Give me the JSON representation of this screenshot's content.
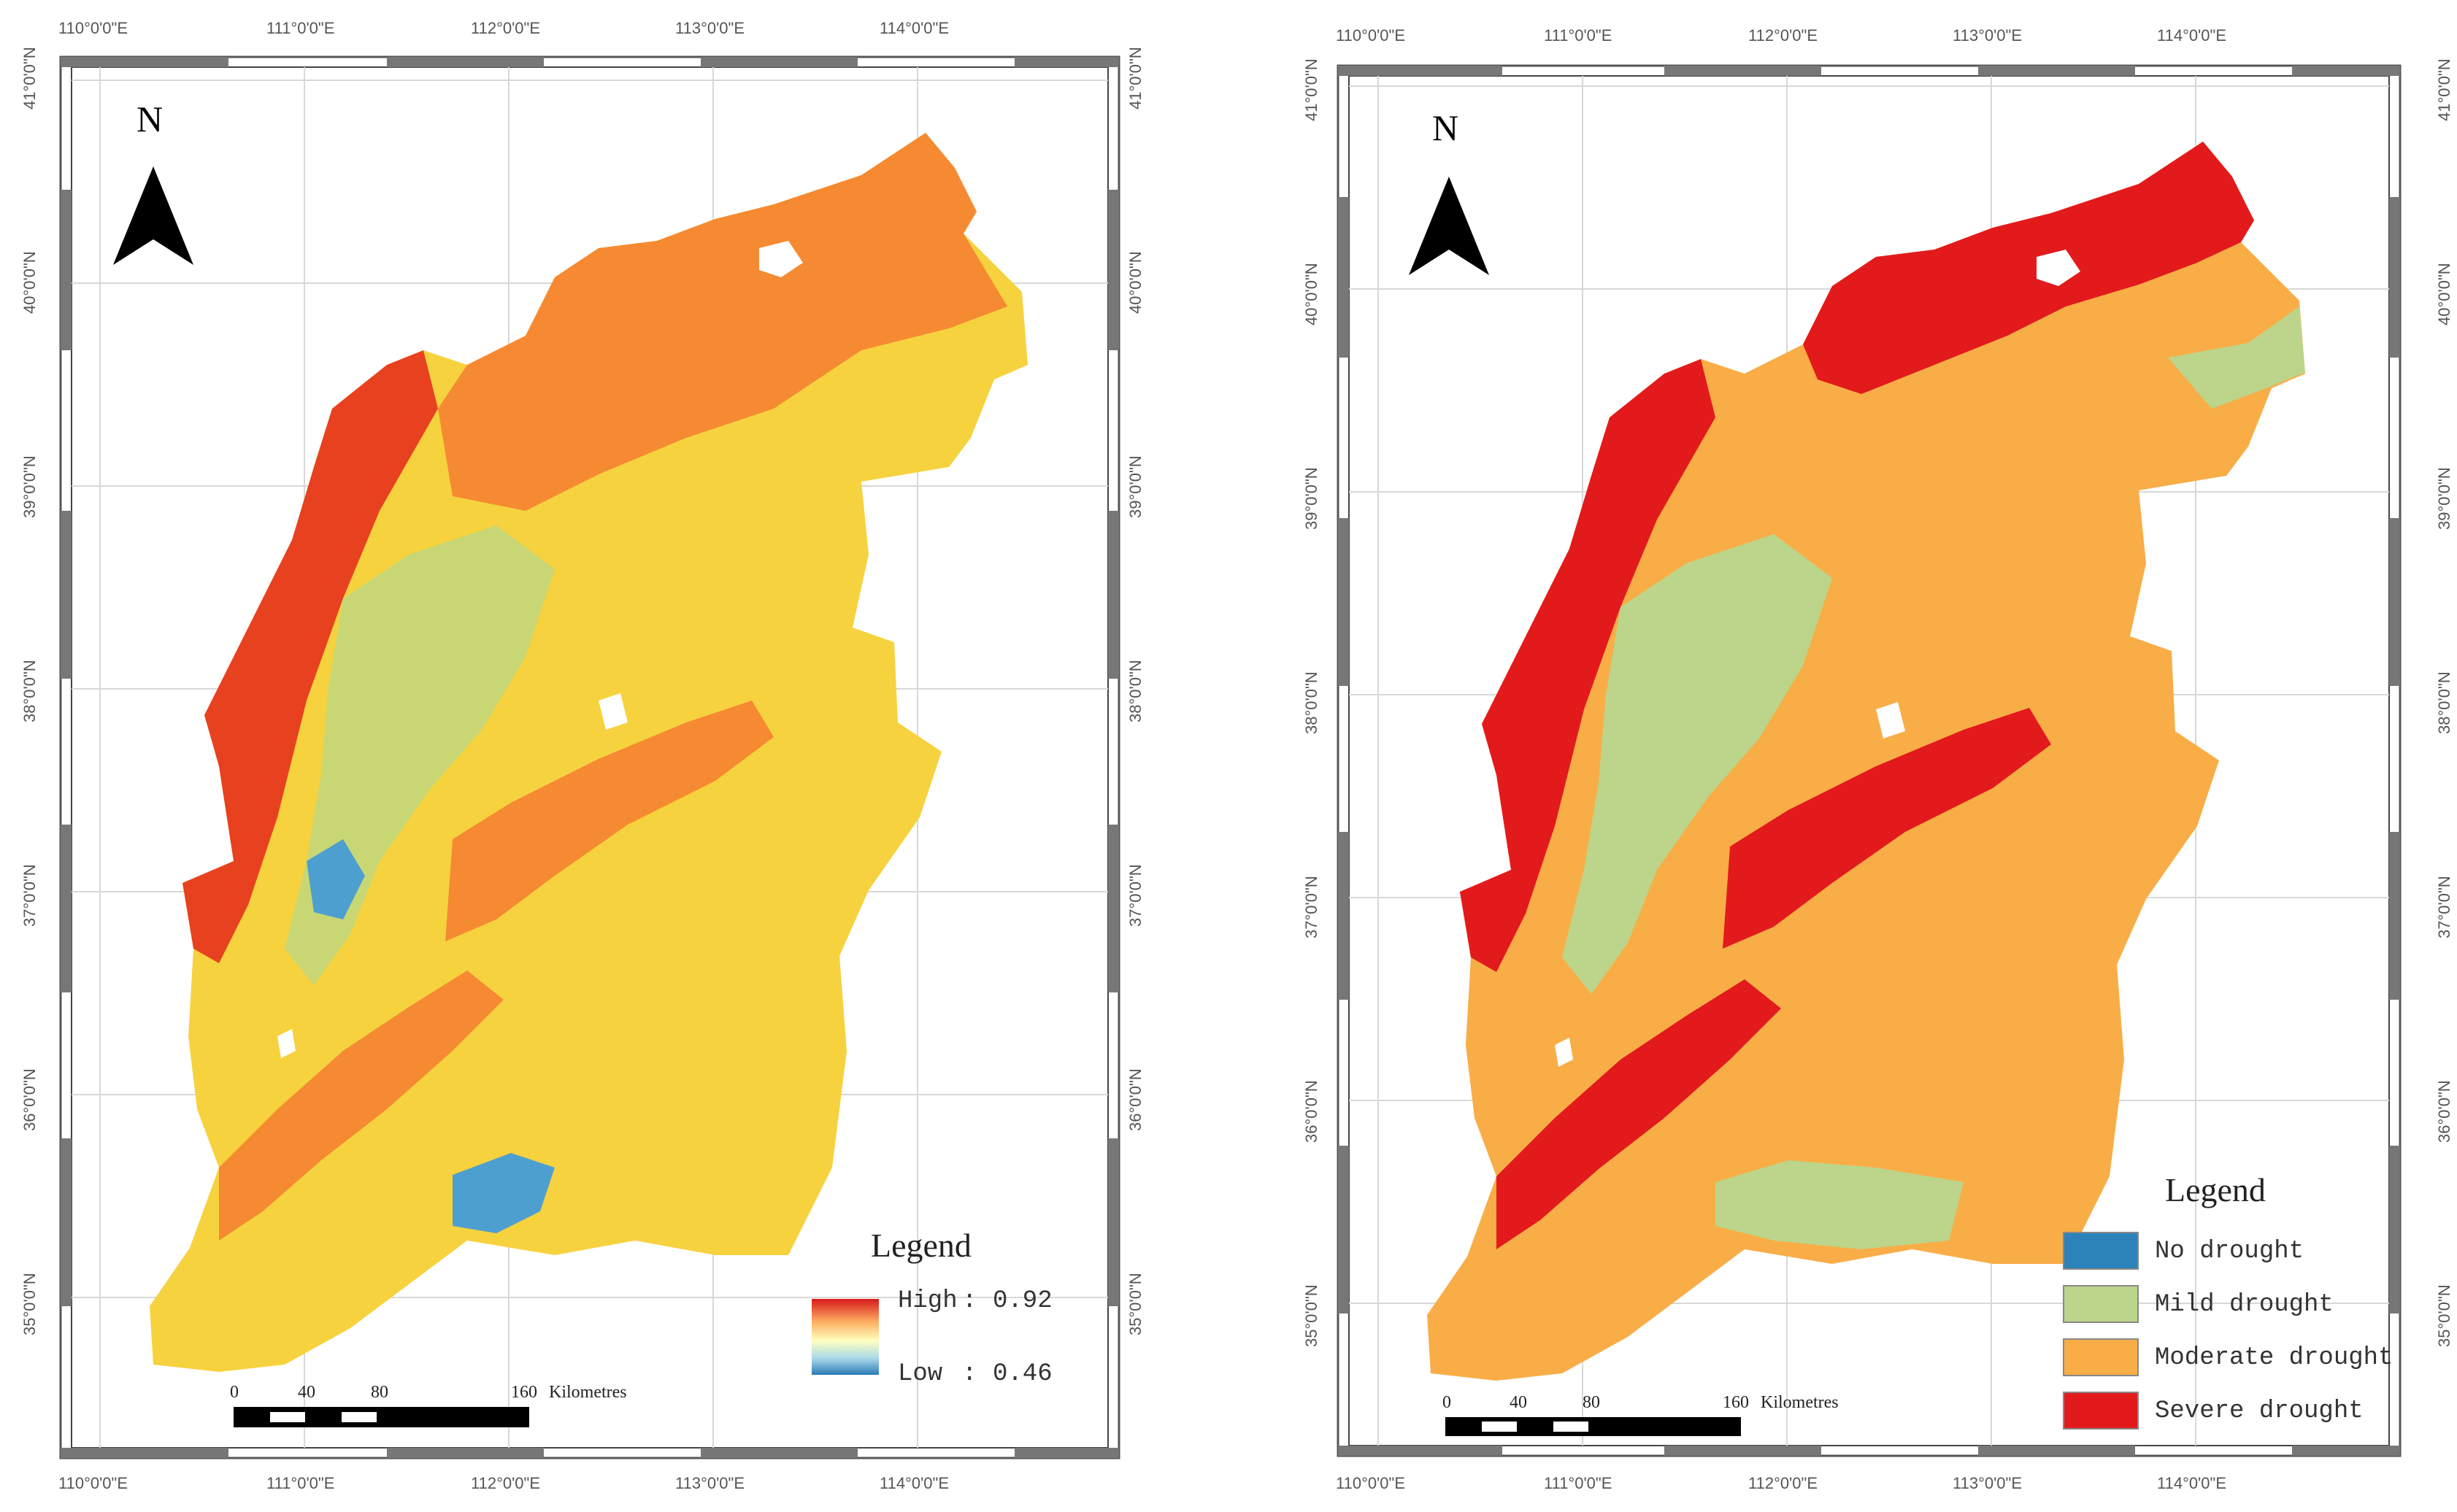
{
  "longitude_labels": [
    "110°0'0\"E",
    "111°0'0\"E",
    "112°0'0\"E",
    "113°0'0\"E",
    "114°0'0\"E"
  ],
  "latitude_labels": [
    "41°0'0\"N",
    "40°0'0\"N",
    "39°0'0\"N",
    "38°0'0\"N",
    "37°0'0\"N",
    "36°0'0\"N",
    "35°0'0\"N"
  ],
  "north_arrow": {
    "label": "N",
    "icon": "north-arrow-icon"
  },
  "scale_bar": {
    "ticks": [
      "0",
      "40",
      "80",
      "160"
    ],
    "unit": "Kilometres"
  },
  "left_map": {
    "legend": {
      "title": "Legend",
      "high_label": "High",
      "high_value": "0.92",
      "low_label": "Low",
      "low_value": "0.46",
      "gradient_colors": [
        "#d7191c",
        "#fdae61",
        "#ffffbf",
        "#abd9e9",
        "#2c7bb6"
      ]
    },
    "colors": {
      "high": "#e8411f",
      "mid_high": "#f58a32",
      "mid": "#f6d23e",
      "mid_low": "#c8d774",
      "low": "#4d9fcf"
    }
  },
  "right_map": {
    "legend": {
      "title": "Legend",
      "classes": [
        {
          "label": "No drought",
          "color": "#2b83ba"
        },
        {
          "label": "Mild drought",
          "color": "#bcd58a"
        },
        {
          "label": "Moderate drought",
          "color": "#f9ad47"
        },
        {
          "label": "Severe drought",
          "color": "#e31a1c"
        }
      ]
    }
  }
}
